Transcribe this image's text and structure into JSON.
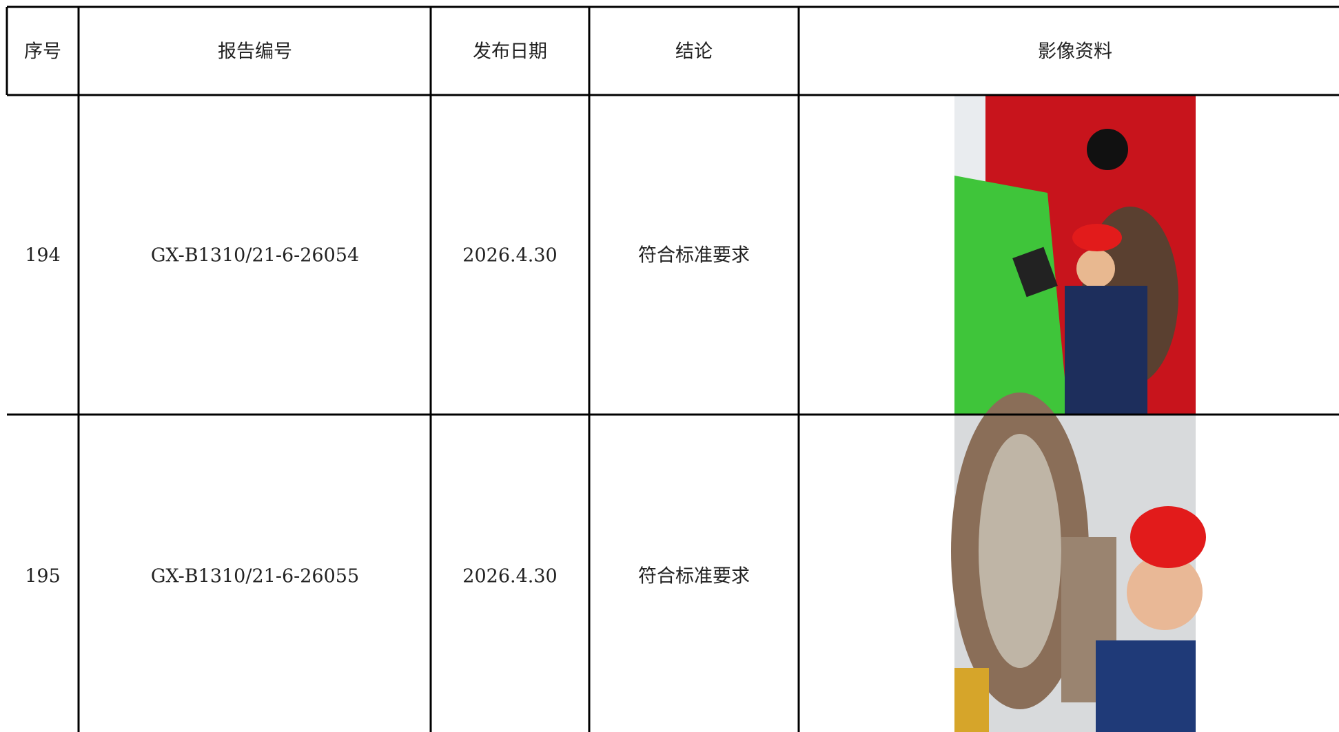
{
  "table": {
    "headers": [
      "序号",
      "报告编号",
      "发布日期",
      "结论",
      "影像资料"
    ],
    "rows": [
      [
        "194",
        "GX-B1310/21-6-26054",
        "2026.4.30",
        "符合标准要求"
      ],
      [
        "195",
        "GX-B1310/21-6-26055",
        "2026.4.30",
        "符合标准要求"
      ]
    ]
  }
}
